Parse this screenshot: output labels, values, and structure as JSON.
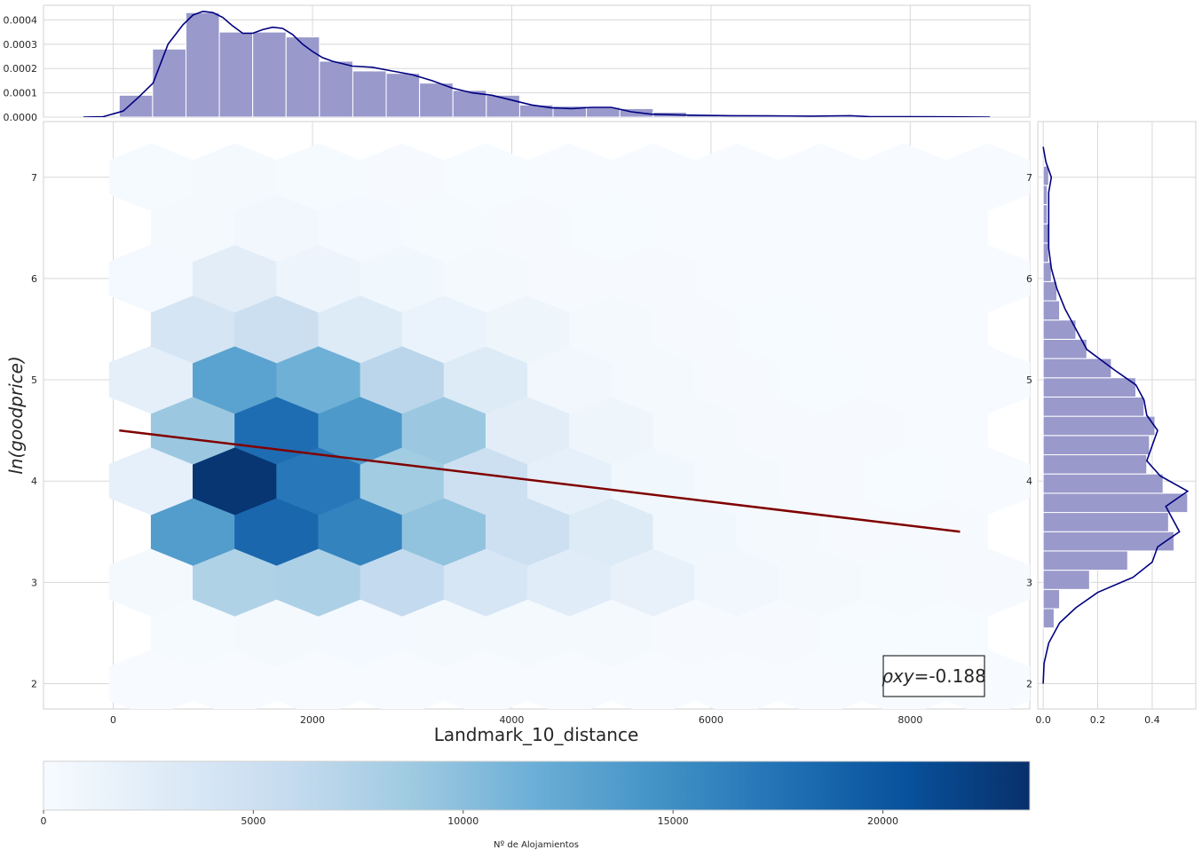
{
  "chart_data": [
    {
      "panel": "main",
      "type": "heatmap",
      "subtype": "hexbin",
      "xlabel": "Landmark_10_distance",
      "ylabel": "ln(goodprice)",
      "xlim": [
        -700,
        9200
      ],
      "ylim": [
        1.75,
        7.55
      ],
      "x_ticks": [
        0,
        2000,
        4000,
        6000,
        8000
      ],
      "y_ticks": [
        2,
        3,
        4,
        5,
        6,
        7
      ],
      "grid": true,
      "colormap": "Blues",
      "hex_size": 0.09,
      "hex_centers_x": [
        380,
        1220,
        2060,
        2900,
        3740,
        4580,
        5420,
        6260,
        7100,
        7940,
        8780
      ],
      "rows": [
        {
          "y": 2.0,
          "odd": false,
          "counts": [
            40,
            50,
            40,
            30,
            30,
            30,
            20,
            20,
            20,
            20,
            20
          ]
        },
        {
          "y": 2.5,
          "odd": true,
          "counts": [
            250,
            400,
            450,
            350,
            300,
            350,
            150,
            100,
            80,
            60
          ]
        },
        {
          "y": 3.0,
          "odd": false,
          "counts": [
            400,
            7500,
            7800,
            6000,
            3800,
            2700,
            1800,
            700,
            400,
            250,
            150
          ]
        },
        {
          "y": 3.5,
          "odd": true,
          "counts": [
            13500,
            18500,
            16000,
            9500,
            5000,
            3000,
            800,
            300,
            150,
            100
          ]
        },
        {
          "y": 4.0,
          "odd": false,
          "counts": [
            2000,
            23000,
            17000,
            8500,
            5000,
            2000,
            800,
            300,
            150,
            80,
            50
          ]
        },
        {
          "y": 4.5,
          "odd": true,
          "counts": [
            9000,
            18000,
            14000,
            9000,
            2500,
            1000,
            300,
            150,
            100,
            50
          ]
        },
        {
          "y": 5.0,
          "odd": false,
          "counts": [
            2200,
            13000,
            11500,
            6700,
            3000,
            700,
            300,
            100,
            80,
            50,
            30
          ]
        },
        {
          "y": 5.5,
          "odd": true,
          "counts": [
            4000,
            5200,
            3000,
            1500,
            1000,
            300,
            150,
            80,
            50,
            30
          ]
        },
        {
          "y": 6.0,
          "odd": false,
          "counts": [
            450,
            2500,
            1200,
            800,
            400,
            150,
            100,
            50,
            30,
            20,
            20
          ]
        },
        {
          "y": 6.5,
          "odd": true,
          "counts": [
            400,
            700,
            450,
            250,
            150,
            80,
            50,
            30,
            20,
            20
          ]
        },
        {
          "y": 7.0,
          "odd": false,
          "counts": [
            200,
            300,
            250,
            150,
            80,
            50,
            30,
            20,
            20,
            20,
            20
          ]
        }
      ],
      "regression": {
        "x": [
          60,
          8500
        ],
        "y": [
          4.5,
          3.5
        ],
        "color": "#800000"
      },
      "annotation": {
        "label": "ρxy",
        "value": "=-0.188"
      }
    },
    {
      "panel": "top-marginal",
      "type": "bar",
      "subtype": "histogram",
      "ylim": [
        0,
        0.00046
      ],
      "y_ticks": [
        "0.0000",
        "0.0001",
        "0.0002",
        "0.0003",
        "0.0004"
      ],
      "x_ticks": [
        0,
        2000,
        4000,
        6000,
        8000
      ],
      "bin_start": 60,
      "bin_width": 335,
      "values": [
        9e-05,
        0.00028,
        0.00043,
        0.00035,
        0.00035,
        0.00033,
        0.00023,
        0.00019,
        0.00018,
        0.00014,
        0.00011,
        9e-05,
        5e-05,
        4.5e-05,
        4e-05,
        3.5e-05,
        2e-05,
        1e-05,
        8e-06,
        6e-06,
        5e-06,
        4e-06,
        3e-06,
        3e-06,
        2e-06,
        2e-06
      ],
      "kde": {
        "x": [
          -300,
          -100,
          100,
          250,
          400,
          550,
          700,
          800,
          900,
          1000,
          1100,
          1200,
          1300,
          1400,
          1500,
          1600,
          1700,
          1800,
          1900,
          2000,
          2100,
          2200,
          2400,
          2600,
          2800,
          3000,
          3200,
          3400,
          3600,
          3800,
          4000,
          4200,
          4400,
          4600,
          4800,
          5000,
          5200,
          5400,
          5800,
          6200,
          6600,
          7000,
          7400,
          7600,
          8000,
          8400,
          8800
        ],
        "y": [
          0,
          2e-06,
          2.5e-05,
          8e-05,
          0.00014,
          0.0003,
          0.00038,
          0.00042,
          0.000435,
          0.00043,
          0.00041,
          0.000375,
          0.000345,
          0.000345,
          0.00036,
          0.00037,
          0.000365,
          0.00034,
          0.0003,
          0.00027,
          0.000245,
          0.00023,
          0.00021,
          0.000205,
          0.00019,
          0.000175,
          0.00015,
          0.00012,
          0.0001,
          9e-05,
          7e-05,
          5e-05,
          3.8e-05,
          3.5e-05,
          4e-05,
          4e-05,
          2.2e-05,
          1.2e-05,
          8e-06,
          6e-06,
          5e-06,
          4e-06,
          6e-06,
          2e-06,
          2e-06,
          1e-06,
          0
        ]
      },
      "colors": {
        "bar": "#9999cc",
        "line": "#000080"
      }
    },
    {
      "panel": "right-marginal",
      "type": "bar",
      "subtype": "histogram-horizontal",
      "xlim": [
        -0.02,
        0.56
      ],
      "x_ticks": [
        "0.0",
        "0.2",
        "0.4"
      ],
      "y_ticks": [
        2,
        3,
        4,
        5,
        6,
        7
      ],
      "bin_start": 2.55,
      "bin_width": 0.19,
      "values": [
        0.04,
        0.06,
        0.17,
        0.31,
        0.48,
        0.46,
        0.53,
        0.44,
        0.38,
        0.39,
        0.41,
        0.37,
        0.34,
        0.25,
        0.16,
        0.12,
        0.06,
        0.05,
        0.03,
        0.02,
        0.02,
        0.015,
        0.015,
        0.02
      ],
      "kde": {
        "y": [
          2.0,
          2.2,
          2.4,
          2.6,
          2.75,
          2.9,
          3.05,
          3.2,
          3.35,
          3.5,
          3.6,
          3.75,
          3.9,
          4.05,
          4.2,
          4.35,
          4.5,
          4.65,
          4.8,
          4.95,
          5.1,
          5.3,
          5.5,
          5.7,
          5.9,
          6.1,
          6.3,
          6.5,
          6.7,
          6.85,
          7.0,
          7.15,
          7.3
        ],
        "x": [
          0.0,
          0.003,
          0.02,
          0.06,
          0.12,
          0.2,
          0.33,
          0.4,
          0.42,
          0.5,
          0.48,
          0.45,
          0.53,
          0.43,
          0.38,
          0.4,
          0.42,
          0.38,
          0.37,
          0.34,
          0.26,
          0.16,
          0.12,
          0.08,
          0.05,
          0.03,
          0.02,
          0.02,
          0.02,
          0.02,
          0.03,
          0.01,
          0.0
        ]
      },
      "colors": {
        "bar": "#9999cc",
        "line": "#000080"
      }
    },
    {
      "panel": "colorbar",
      "type": "heatmap",
      "subtype": "colorbar",
      "range": [
        0,
        23500
      ],
      "ticks": [
        0,
        5000,
        10000,
        15000,
        20000
      ],
      "label": "Nº de Alojamientos",
      "colormap": "Blues"
    }
  ]
}
